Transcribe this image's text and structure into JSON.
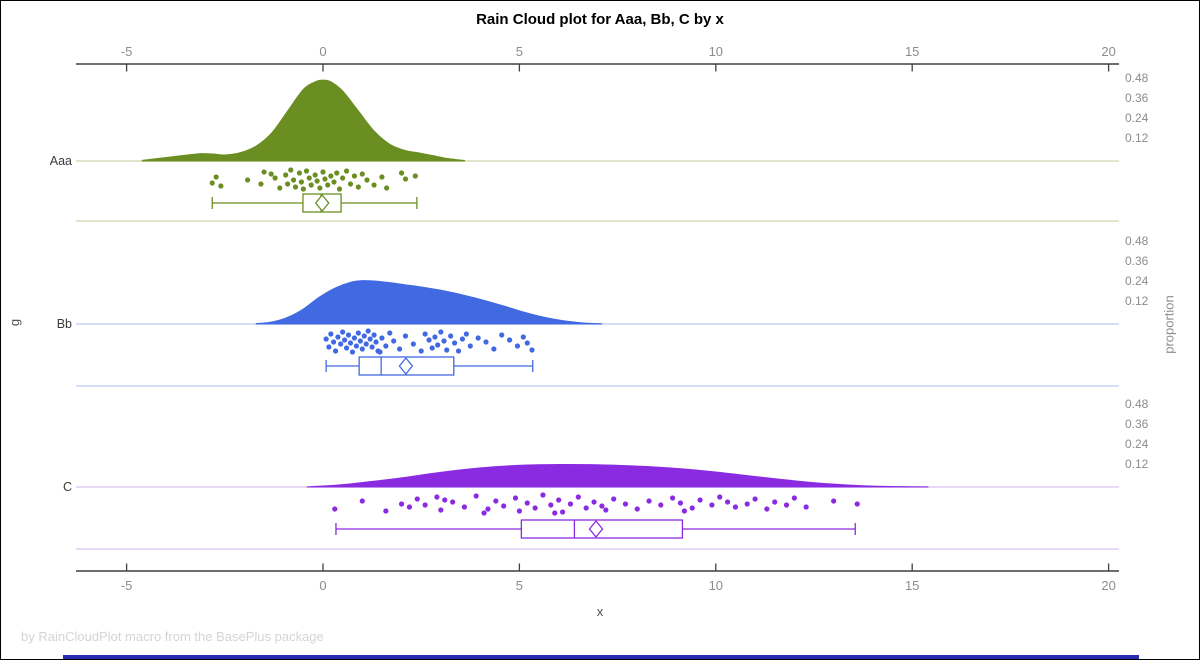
{
  "title": "Rain Cloud plot for Aaa, Bb, C by x",
  "footer": "by RainCloudPlot macro from the BasePlus package",
  "axes": {
    "x_label": "x",
    "y_label": "g",
    "right_label": "proportion",
    "x_ticks": [
      -5,
      0,
      5,
      10,
      15,
      20
    ],
    "proportion_ticks": [
      0.48,
      0.36,
      0.24,
      0.12
    ]
  },
  "colors": {
    "aaa": "#6B8E23",
    "bb": "#4169E1",
    "c": "#8A2BE2",
    "axis_line": "#3f3f3f",
    "tick_label": "#8c8c8c",
    "group_label": "#3a3a3a",
    "footer_text": "#d4d4d4",
    "bottom_bar": "#2b2bb0"
  },
  "chart_data": {
    "type": "raincloud",
    "title": "Rain Cloud plot for Aaa, Bb, C by x",
    "xlabel": "x",
    "ylabel": "g",
    "right_ylabel": "proportion",
    "x_ticks": [
      -5,
      0,
      5,
      10,
      15,
      20
    ],
    "x_range": [
      -6.3,
      20.3
    ],
    "proportion_ticks_per_group": [
      0.48,
      0.36,
      0.24,
      0.12
    ],
    "groups": [
      {
        "name": "Aaa",
        "color": "#6B8E23",
        "row_line_color": "#cdd8ad",
        "density": {
          "x": [
            -4.6,
            -4.1,
            -3.6,
            -3.1,
            -2.8,
            -2.5,
            -2.1,
            -1.7,
            -1.3,
            -0.9,
            -0.5,
            -0.2,
            0,
            0.2,
            0.5,
            0.9,
            1.3,
            1.7,
            2.1,
            2.4,
            2.8,
            3.2,
            3.6
          ],
          "proportion": [
            0.004,
            0.018,
            0.032,
            0.044,
            0.042,
            0.036,
            0.05,
            0.09,
            0.17,
            0.3,
            0.43,
            0.475,
            0.485,
            0.475,
            0.42,
            0.3,
            0.18,
            0.1,
            0.062,
            0.05,
            0.032,
            0.014,
            0.003
          ]
        },
        "box": {
          "whisker_low": -2.82,
          "q1": -0.51,
          "median": -0.05,
          "q3": 0.46,
          "whisker_high": 2.39,
          "mean": -0.02
        },
        "points": [
          [
            -2.82,
            20
          ],
          [
            -2.72,
            14
          ],
          [
            -2.6,
            23
          ],
          [
            -1.92,
            17
          ],
          [
            -1.58,
            21
          ],
          [
            -1.5,
            9
          ],
          [
            -1.32,
            11
          ],
          [
            -1.22,
            15
          ],
          [
            -1.1,
            25
          ],
          [
            -0.95,
            12
          ],
          [
            -0.9,
            21
          ],
          [
            -0.82,
            7
          ],
          [
            -0.75,
            17
          ],
          [
            -0.7,
            24
          ],
          [
            -0.6,
            10
          ],
          [
            -0.55,
            19
          ],
          [
            -0.5,
            26
          ],
          [
            -0.42,
            8
          ],
          [
            -0.35,
            15
          ],
          [
            -0.3,
            22
          ],
          [
            -0.2,
            12
          ],
          [
            -0.15,
            18
          ],
          [
            -0.08,
            25
          ],
          [
            0,
            9
          ],
          [
            0.05,
            16
          ],
          [
            0.12,
            22
          ],
          [
            0.2,
            13
          ],
          [
            0.28,
            19
          ],
          [
            0.35,
            10
          ],
          [
            0.42,
            26
          ],
          [
            0.5,
            15
          ],
          [
            0.6,
            8
          ],
          [
            0.7,
            21
          ],
          [
            0.8,
            13
          ],
          [
            0.9,
            24
          ],
          [
            1.0,
            11
          ],
          [
            1.12,
            17
          ],
          [
            1.3,
            22
          ],
          [
            1.5,
            14
          ],
          [
            1.62,
            25
          ],
          [
            2.0,
            10
          ],
          [
            2.1,
            16
          ],
          [
            2.35,
            13
          ]
        ]
      },
      {
        "name": "Bb",
        "color": "#4169E1",
        "row_line_color": "#bcc9f0",
        "density": {
          "x": [
            -1.7,
            -1.3,
            -0.9,
            -0.5,
            -0.1,
            0.3,
            0.7,
            1.0,
            1.3,
            1.7,
            2.1,
            2.6,
            3.1,
            3.6,
            4.1,
            4.6,
            5.1,
            5.6,
            6.1,
            6.6,
            7.1
          ],
          "proportion": [
            0.002,
            0.012,
            0.04,
            0.09,
            0.16,
            0.215,
            0.25,
            0.26,
            0.258,
            0.248,
            0.235,
            0.218,
            0.198,
            0.172,
            0.142,
            0.108,
            0.072,
            0.042,
            0.02,
            0.007,
            0.001
          ]
        },
        "box": {
          "whisker_low": 0.08,
          "q1": 0.92,
          "median": 1.48,
          "q3": 3.33,
          "whisker_high": 5.34,
          "mean": 2.11
        },
        "points": [
          [
            0.08,
            13
          ],
          [
            0.15,
            21
          ],
          [
            0.2,
            8
          ],
          [
            0.27,
            16
          ],
          [
            0.32,
            25
          ],
          [
            0.38,
            11
          ],
          [
            0.45,
            18
          ],
          [
            0.5,
            6
          ],
          [
            0.55,
            14
          ],
          [
            0.6,
            22
          ],
          [
            0.65,
            9
          ],
          [
            0.7,
            17
          ],
          [
            0.75,
            26
          ],
          [
            0.8,
            12
          ],
          [
            0.85,
            20
          ],
          [
            0.9,
            7
          ],
          [
            0.95,
            15
          ],
          [
            1.0,
            23
          ],
          [
            1.05,
            10
          ],
          [
            1.1,
            18
          ],
          [
            1.15,
            5
          ],
          [
            1.2,
            13
          ],
          [
            1.25,
            21
          ],
          [
            1.3,
            9
          ],
          [
            1.35,
            16
          ],
          [
            1.4,
            25
          ],
          [
            1.45,
            26
          ],
          [
            1.5,
            12
          ],
          [
            1.6,
            20
          ],
          [
            1.7,
            7
          ],
          [
            1.8,
            15
          ],
          [
            1.95,
            23
          ],
          [
            2.1,
            10
          ],
          [
            2.3,
            18
          ],
          [
            2.5,
            25
          ],
          [
            2.6,
            8
          ],
          [
            2.7,
            14
          ],
          [
            2.78,
            22
          ],
          [
            2.85,
            11
          ],
          [
            2.92,
            19
          ],
          [
            3.0,
            6
          ],
          [
            3.08,
            15
          ],
          [
            3.15,
            24
          ],
          [
            3.25,
            10
          ],
          [
            3.35,
            17
          ],
          [
            3.45,
            25
          ],
          [
            3.55,
            13
          ],
          [
            3.65,
            8
          ],
          [
            3.75,
            20
          ],
          [
            3.95,
            12
          ],
          [
            4.15,
            16
          ],
          [
            4.35,
            23
          ],
          [
            4.55,
            9
          ],
          [
            4.75,
            14
          ],
          [
            4.95,
            20
          ],
          [
            5.1,
            11
          ],
          [
            5.2,
            17
          ],
          [
            5.32,
            24
          ]
        ]
      },
      {
        "name": "C",
        "color": "#8A2BE2",
        "row_line_color": "#d9c3f2",
        "density": {
          "x": [
            -0.4,
            0.4,
            1.2,
            2.0,
            2.8,
            3.6,
            4.4,
            5.2,
            6.0,
            6.8,
            7.6,
            8.4,
            9.2,
            10.0,
            10.8,
            11.6,
            12.4,
            13.2,
            14.0,
            14.8,
            15.4
          ],
          "proportion": [
            0.001,
            0.012,
            0.032,
            0.055,
            0.082,
            0.105,
            0.122,
            0.132,
            0.135,
            0.134,
            0.129,
            0.121,
            0.108,
            0.09,
            0.068,
            0.047,
            0.028,
            0.014,
            0.005,
            0.002,
            0.0005
          ]
        },
        "box": {
          "whisker_low": 0.33,
          "q1": 5.05,
          "median": 6.4,
          "q3": 9.15,
          "whisker_high": 13.55,
          "mean": 6.95
        },
        "points": [
          [
            0.3,
            20
          ],
          [
            1.0,
            12
          ],
          [
            1.6,
            22
          ],
          [
            2.0,
            15
          ],
          [
            2.2,
            18
          ],
          [
            2.4,
            10
          ],
          [
            2.6,
            16
          ],
          [
            2.9,
            8
          ],
          [
            3.0,
            21
          ],
          [
            3.1,
            11
          ],
          [
            3.3,
            13
          ],
          [
            3.6,
            18
          ],
          [
            3.9,
            7
          ],
          [
            4.1,
            24
          ],
          [
            4.2,
            20
          ],
          [
            4.4,
            12
          ],
          [
            4.6,
            17
          ],
          [
            4.9,
            9
          ],
          [
            5.0,
            22
          ],
          [
            5.2,
            14
          ],
          [
            5.4,
            19
          ],
          [
            5.6,
            6
          ],
          [
            5.8,
            16
          ],
          [
            5.9,
            24
          ],
          [
            6.0,
            11
          ],
          [
            6.1,
            23
          ],
          [
            6.3,
            15
          ],
          [
            6.5,
            8
          ],
          [
            6.7,
            19
          ],
          [
            6.9,
            13
          ],
          [
            7.1,
            17
          ],
          [
            7.2,
            21
          ],
          [
            7.4,
            10
          ],
          [
            7.7,
            15
          ],
          [
            8.0,
            20
          ],
          [
            8.3,
            12
          ],
          [
            8.6,
            16
          ],
          [
            8.9,
            9
          ],
          [
            9.1,
            14
          ],
          [
            9.2,
            22
          ],
          [
            9.4,
            19
          ],
          [
            9.6,
            11
          ],
          [
            9.9,
            16
          ],
          [
            10.1,
            8
          ],
          [
            10.3,
            13
          ],
          [
            10.5,
            18
          ],
          [
            10.8,
            15
          ],
          [
            11.0,
            10
          ],
          [
            11.3,
            20
          ],
          [
            11.5,
            13
          ],
          [
            11.8,
            16
          ],
          [
            12.0,
            9
          ],
          [
            12.3,
            18
          ],
          [
            13.0,
            12
          ],
          [
            13.6,
            15
          ]
        ]
      }
    ]
  }
}
